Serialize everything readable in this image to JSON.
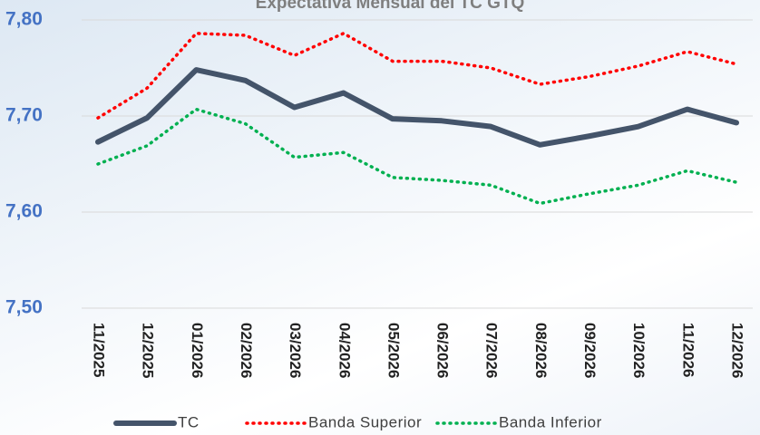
{
  "chart_data": {
    "type": "line",
    "title": "Expectativa Mensual del TC GTQ",
    "categories": [
      "11/2025",
      "12/2025",
      "01/2026",
      "02/2026",
      "03/2026",
      "04/2026",
      "05/2026",
      "06/2026",
      "07/2026",
      "08/2026",
      "09/2026",
      "10/2026",
      "11/2026",
      "12/2026"
    ],
    "series": [
      {
        "name": "TC",
        "color": "#44546a",
        "style": "solid",
        "values": [
          7.673,
          7.698,
          7.748,
          7.737,
          7.709,
          7.724,
          7.697,
          7.695,
          7.689,
          7.67,
          7.679,
          7.689,
          7.707,
          7.693
        ]
      },
      {
        "name": "Banda Superior",
        "color": "#ff0000",
        "style": "dotted",
        "values": [
          7.698,
          7.729,
          7.786,
          7.784,
          7.763,
          7.786,
          7.757,
          7.757,
          7.75,
          7.733,
          7.741,
          7.752,
          7.767,
          7.754
        ]
      },
      {
        "name": "Banda Inferior",
        "color": "#00b050",
        "style": "dotted",
        "values": [
          7.65,
          7.669,
          7.707,
          7.692,
          7.657,
          7.662,
          7.636,
          7.633,
          7.628,
          7.609,
          7.619,
          7.628,
          7.643,
          7.631
        ]
      }
    ],
    "ylim": [
      7.5,
      7.8
    ],
    "yticks": [
      {
        "value": 7.5,
        "label": "7,50"
      },
      {
        "value": 7.6,
        "label": "7,60"
      },
      {
        "value": 7.7,
        "label": "7,70"
      },
      {
        "value": 7.8,
        "label": "7,80"
      }
    ],
    "grid": true,
    "legend": "bottom"
  }
}
